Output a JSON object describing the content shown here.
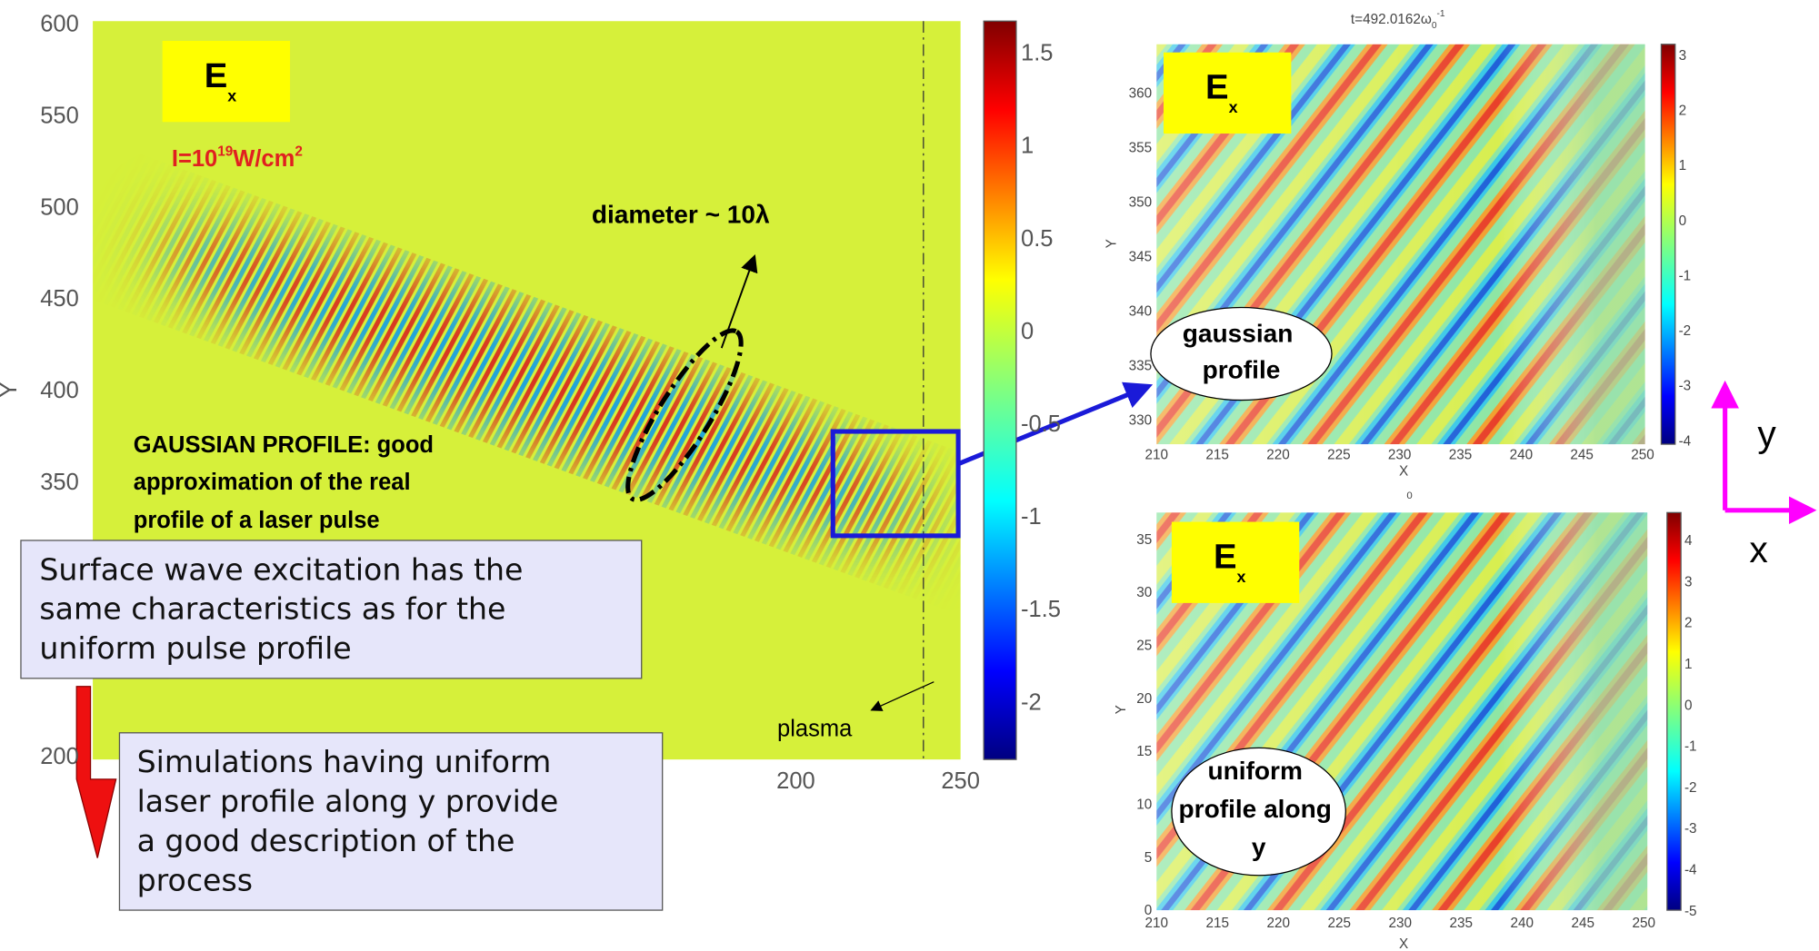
{
  "main_plot": {
    "yticks": [
      "600",
      "550",
      "500",
      "450",
      "400",
      "350",
      "200"
    ],
    "y_label": "Y",
    "xticks": [
      "200",
      "250"
    ],
    "colorbar_ticks": [
      "1.5",
      "1",
      "0.5",
      "0",
      "-0.5",
      "-1",
      "-1.5",
      "-2"
    ],
    "field_label": {
      "base": "E",
      "sub": "x"
    },
    "intensity": {
      "base": "I=10",
      "exp": "19",
      "unit": "W/cm",
      "unit_exp": "2"
    },
    "diameter_note": "diameter ~ 10λ",
    "profile_note": [
      "GAUSSIAN PROFILE: good",
      "approximation of the real",
      "profile of a laser pulse"
    ],
    "plasma_label": "plasma"
  },
  "callouts": [
    {
      "lines": [
        "Surface wave excitation has the",
        "same characteristics as for the",
        "uniform pulse profile"
      ]
    },
    {
      "lines": [
        "Simulations having uniform",
        "laser profile along y provide",
        "a good description of the",
        "process"
      ]
    }
  ],
  "gaussian_plot": {
    "title": {
      "base": "t=492.0162ω",
      "sub": "0",
      "sup": "-1"
    },
    "yticks": [
      "360",
      "355",
      "350",
      "345",
      "340",
      "335",
      "330"
    ],
    "xticks": [
      "210",
      "215",
      "220",
      "225",
      "230",
      "235",
      "240",
      "245",
      "250"
    ],
    "x_label": "X",
    "y_label": "Y",
    "colorbar_ticks": [
      "3",
      "2",
      "1",
      "0",
      "-1",
      "-2",
      "-3",
      "-4"
    ],
    "field_label": {
      "base": "E",
      "sub": "x"
    },
    "bubble": [
      "gaussian",
      "profile"
    ]
  },
  "uniform_plot": {
    "title": "0",
    "yticks": [
      "35",
      "30",
      "25",
      "20",
      "15",
      "10",
      "5",
      "0"
    ],
    "xticks": [
      "210",
      "215",
      "220",
      "225",
      "230",
      "235",
      "240",
      "245",
      "250"
    ],
    "x_label": "X",
    "y_label": "Y",
    "colorbar_ticks": [
      "4",
      "3",
      "2",
      "1",
      "0",
      "-1",
      "-2",
      "-3",
      "-4",
      "-5"
    ],
    "field_label": {
      "base": "E",
      "sub": "x"
    },
    "bubble": [
      "uniform",
      "profile along",
      "y"
    ]
  },
  "axes_legend": {
    "y": "y",
    "x": "x"
  }
}
